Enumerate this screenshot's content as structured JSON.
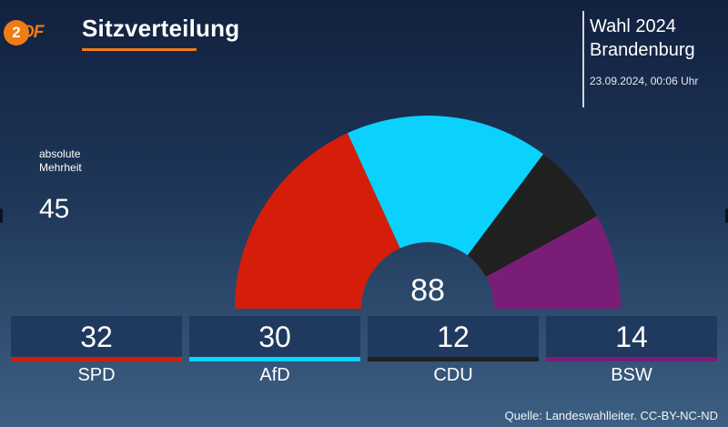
{
  "brand": {
    "logo_text": "ZDF",
    "logo_mark": "2",
    "logo_rest": "DF",
    "accent": "#f07c16"
  },
  "header": {
    "title": "Sitzverteilung",
    "election_line1": "Wahl 2024",
    "election_line2": "Brandenburg",
    "timestamp": "23.09.2024, 00:06 Uhr"
  },
  "majority": {
    "label_line1": "absolute",
    "label_line2": "Mehrheit",
    "value": "45"
  },
  "footer": {
    "source": "Quelle: Landeswahlleiter. CC-BY-NC-ND"
  },
  "chart_data": {
    "type": "pie",
    "shape": "half-donut",
    "title": "Sitzverteilung",
    "total": 88,
    "total_label": "88",
    "majority_threshold": 45,
    "categories": [
      "SPD",
      "AfD",
      "CDU",
      "BSW"
    ],
    "values": [
      32,
      30,
      12,
      14
    ],
    "colors": [
      "#d41e0a",
      "#0bd2fd",
      "#202020",
      "#7a1d77"
    ]
  }
}
